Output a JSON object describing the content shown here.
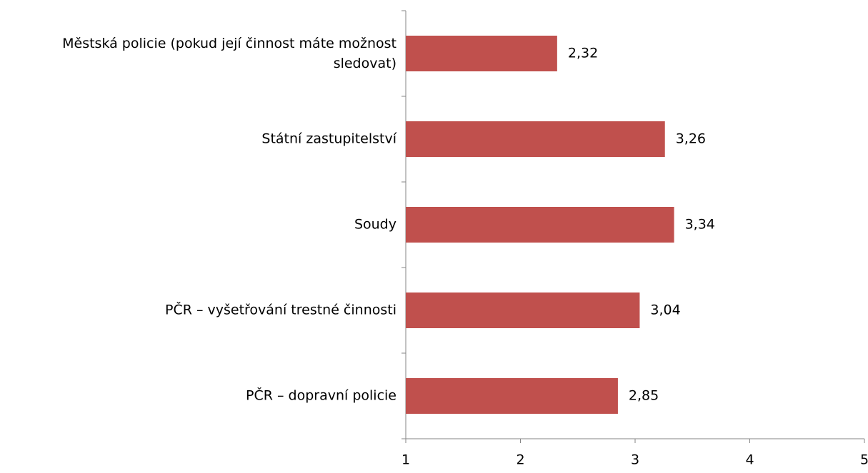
{
  "chart_data": {
    "type": "bar",
    "orientation": "horizontal",
    "categories": [
      "Městská policie (pokud její činnost máte možnost sledovat)",
      "Státní zastupitelství",
      "Soudy",
      "PČR – vyšetřování trestné činnosti",
      "PČR – dopravní policie"
    ],
    "values": [
      2.32,
      3.26,
      3.34,
      3.04,
      2.85
    ],
    "value_labels": [
      "2,32",
      "3,26",
      "3,34",
      "3,04",
      "2,85"
    ],
    "color": "#c0504d",
    "xlim": [
      1,
      5
    ],
    "xticks": [
      1,
      2,
      3,
      4,
      5
    ],
    "grid": false
  }
}
